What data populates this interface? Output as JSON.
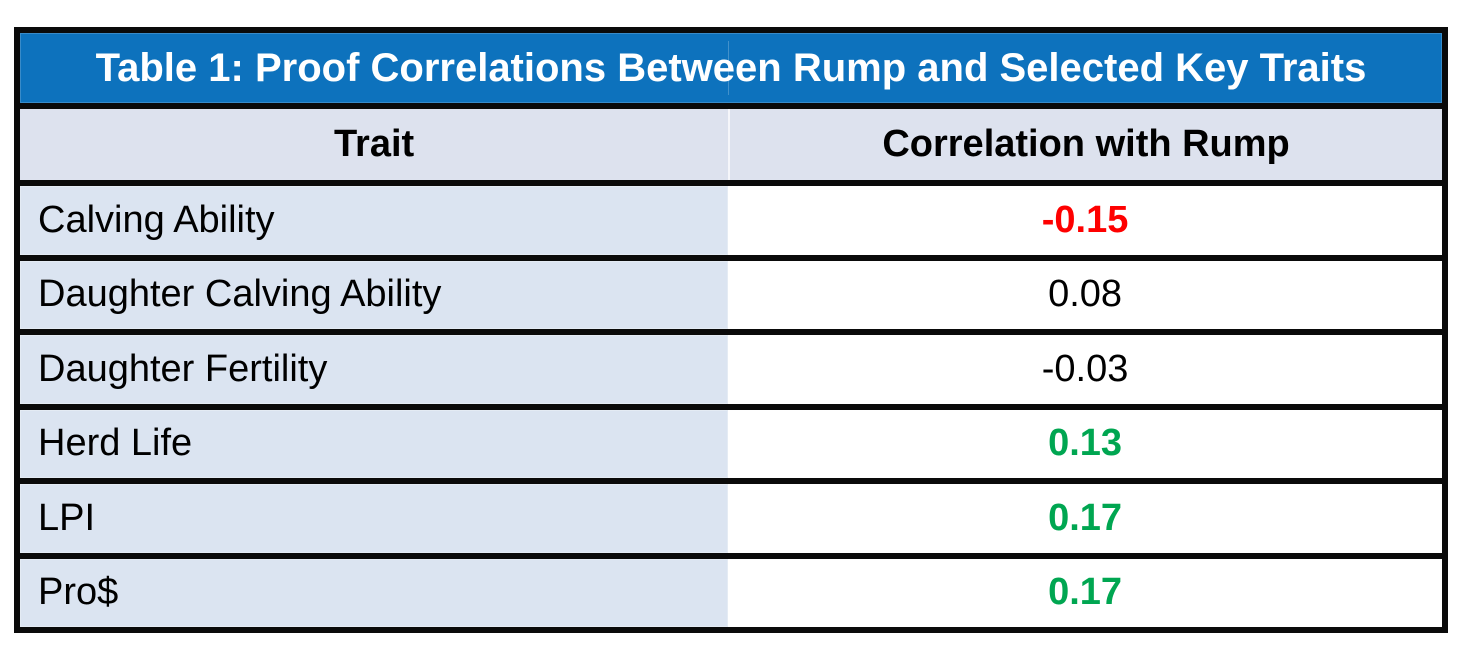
{
  "table": {
    "title": "Table 1: Proof Correlations Between Rump and Selected Key Traits",
    "columns": [
      {
        "label": "Trait"
      },
      {
        "label": "Correlation with Rump"
      }
    ],
    "rows": [
      {
        "trait": "Calving Ability",
        "value": "-0.15",
        "value_color": "#fe0000",
        "value_weight": "bold"
      },
      {
        "trait": "Daughter Calving Ability",
        "value": "0.08",
        "value_color": "#000000",
        "value_weight": "normal"
      },
      {
        "trait": "Daughter Fertility",
        "value": "-0.03",
        "value_color": "#000000",
        "value_weight": "normal"
      },
      {
        "trait": "Herd Life",
        "value": "0.13",
        "value_color": "#00a651",
        "value_weight": "bold"
      },
      {
        "trait": "LPI",
        "value": "0.17",
        "value_color": "#00a651",
        "value_weight": "bold"
      },
      {
        "trait": "Pro$",
        "value": "0.17",
        "value_color": "#00a651",
        "value_weight": "bold"
      }
    ]
  },
  "colors": {
    "title_bg": "#0d72bd",
    "title_text": "#ffffff",
    "header_bg": "#dde2ee",
    "trait_cell_bg": "#dbe4f1",
    "value_cell_bg": "#ffffff",
    "border": "#0a0a0a",
    "negative_value": "#fe0000",
    "positive_value": "#00a651",
    "neutral_value": "#000000"
  },
  "chart_data": {
    "type": "table",
    "title": "Table 1: Proof Correlations Between Rump and Selected Key Traits",
    "columns": [
      "Trait",
      "Correlation with Rump"
    ],
    "rows": [
      [
        "Calving Ability",
        -0.15
      ],
      [
        "Daughter Calving Ability",
        0.08
      ],
      [
        "Daughter Fertility",
        -0.03
      ],
      [
        "Herd Life",
        0.13
      ],
      [
        "LPI",
        0.17
      ],
      [
        "Pro$",
        0.17
      ]
    ],
    "value_color_coding": {
      "-0.15": "red",
      "0.08": "black",
      "-0.03": "black",
      "0.13": "green",
      "0.17": "green"
    }
  }
}
